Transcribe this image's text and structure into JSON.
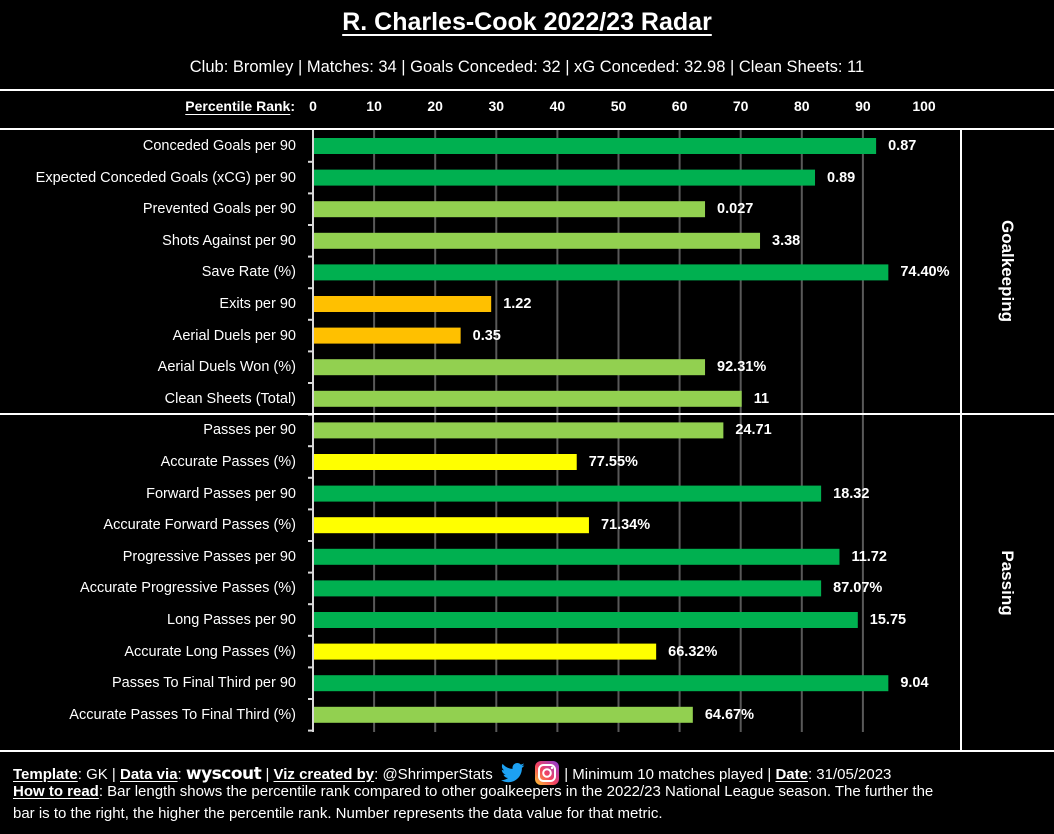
{
  "header": {
    "title": "R. Charles-Cook 2022/23 Radar",
    "subtitle": "Club: Bromley | Matches: 34 | Goals Conceded: 32 | xG Conceded: 32.98 | Clean Sheets: 11"
  },
  "chart_data": {
    "type": "bar",
    "orientation": "horizontal",
    "title": "R. Charles-Cook 2022/23 Radar",
    "xlabel": "Percentile Rank",
    "xlim": [
      0,
      100
    ],
    "x_ticks": [
      "0",
      "10",
      "20",
      "30",
      "40",
      "50",
      "60",
      "70",
      "80",
      "90",
      "100"
    ],
    "grid": true,
    "colors": {
      "dark_green": "#00B050",
      "light_green": "#92D050",
      "orange": "#FFC000",
      "yellow": "#FFFF00",
      "gridline": "#595959"
    },
    "sections": [
      {
        "name": "Goalkeeping",
        "metrics": [
          {
            "label": "Conceded Goals per 90",
            "percentile": 92,
            "value_label": "0.87",
            "color": "#00B050"
          },
          {
            "label": "Expected Conceded Goals (xCG) per 90",
            "percentile": 82,
            "value_label": "0.89",
            "color": "#00B050"
          },
          {
            "label": "Prevented Goals per 90",
            "percentile": 64,
            "value_label": "0.027",
            "color": "#92D050"
          },
          {
            "label": "Shots Against per 90",
            "percentile": 73,
            "value_label": "3.38",
            "color": "#92D050"
          },
          {
            "label": "Save Rate (%)",
            "percentile": 94,
            "value_label": "74.40%",
            "color": "#00B050"
          },
          {
            "label": "Exits per 90",
            "percentile": 29,
            "value_label": "1.22",
            "color": "#FFC000"
          },
          {
            "label": "Aerial Duels per 90",
            "percentile": 24,
            "value_label": "0.35",
            "color": "#FFC000"
          },
          {
            "label": "Aerial Duels Won (%)",
            "percentile": 64,
            "value_label": "92.31%",
            "color": "#92D050"
          },
          {
            "label": "Clean Sheets (Total)",
            "percentile": 70,
            "value_label": "11",
            "color": "#92D050"
          }
        ]
      },
      {
        "name": "Passing",
        "metrics": [
          {
            "label": "Passes per 90",
            "percentile": 67,
            "value_label": "24.71",
            "color": "#92D050"
          },
          {
            "label": "Accurate Passes (%)",
            "percentile": 43,
            "value_label": "77.55%",
            "color": "#FFFF00"
          },
          {
            "label": "Forward Passes per 90",
            "percentile": 83,
            "value_label": "18.32",
            "color": "#00B050"
          },
          {
            "label": "Accurate Forward Passes (%)",
            "percentile": 45,
            "value_label": "71.34%",
            "color": "#FFFF00"
          },
          {
            "label": "Progressive Passes per 90",
            "percentile": 86,
            "value_label": "11.72",
            "color": "#00B050"
          },
          {
            "label": "Accurate Progressive Passes (%)",
            "percentile": 83,
            "value_label": "87.07%",
            "color": "#00B050"
          },
          {
            "label": "Long Passes per 90",
            "percentile": 89,
            "value_label": "15.75",
            "color": "#00B050"
          },
          {
            "label": "Accurate Long Passes (%)",
            "percentile": 56,
            "value_label": "66.32%",
            "color": "#FFFF00"
          },
          {
            "label": "Passes To Final Third per 90",
            "percentile": 94,
            "value_label": "9.04",
            "color": "#00B050"
          },
          {
            "label": "Accurate Passes To Final Third (%)",
            "percentile": 62,
            "value_label": "64.67%",
            "color": "#92D050"
          }
        ]
      }
    ]
  },
  "footer": {
    "template_label": "Template",
    "template_value": ": GK | ",
    "data_via_label": "Data via",
    "data_via_sep": ": ",
    "data_source": "wyscout",
    "viz_sep": " | ",
    "viz_label": "Viz created by",
    "viz_value": ": @ShrimperStats",
    "twitter_icon": "twitter-bird-icon",
    "instagram_icon": "instagram-icon",
    "min_matches": " | Minimum 10 matches played | ",
    "date_label": "Date",
    "date_value": ": 31/05/2023",
    "how_label": "How to read",
    "how_line1": ": Bar length shows the percentile rank compared to other goalkeepers in the 2022/23 National League season. The further the",
    "how_line2": "bar is to the right, the higher the percentile rank. Number represents the data value for that metric."
  }
}
